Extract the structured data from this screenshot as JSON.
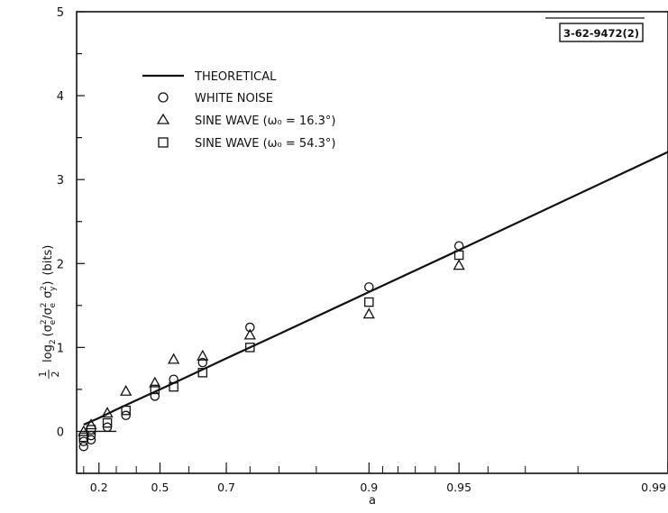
{
  "chart_data": {
    "type": "scatter",
    "figure_id": "3-62-9472(2)",
    "xlabel": "a",
    "ylabel": "1/2 log₂(σₑ²/σₑ² σᵧ²) (bits)",
    "ylabel_parts": {
      "frac_num": "1",
      "frac_den": "2",
      "log": "log",
      "log_sub": "2",
      "paren_open": "(",
      "sigma": "σ",
      "sub_e": "e",
      "sub_y": "y",
      "sup_2": "2",
      "slash": "/",
      "paren_close": ")",
      "units": "(bits)"
    },
    "x_scale": "log(1/(1-a))",
    "xlim": [
      0.05,
      0.99
    ],
    "ylim": [
      -0.5,
      5
    ],
    "x_ticks": [
      0.2,
      0.5,
      0.7,
      0.9,
      0.95,
      0.99
    ],
    "x_tick_labels": [
      "0.2",
      "0.5",
      "0.7",
      "0.9",
      "0.95",
      "0.99"
    ],
    "x_minor_ticks": [
      0.1,
      0.3,
      0.4,
      0.6,
      0.75,
      0.8,
      0.85,
      0.91,
      0.92,
      0.93,
      0.94,
      0.96,
      0.97,
      0.98
    ],
    "y_ticks": [
      0,
      1,
      2,
      3,
      4,
      5
    ],
    "y_tick_labels": [
      "0",
      "1",
      "2",
      "3",
      "4",
      "5"
    ],
    "legend": {
      "position": "top-left",
      "items": [
        {
          "marker": "line",
          "label": "THEORETICAL"
        },
        {
          "marker": "circle",
          "label": "WHITE NOISE"
        },
        {
          "marker": "triangle",
          "label": "SINE WAVE (ω₀ = 16.3°)"
        },
        {
          "marker": "square",
          "label": "SINE WAVE (ω₀ = 54.3°)"
        }
      ]
    },
    "series": [
      {
        "name": "THEORETICAL",
        "marker": "line",
        "x": [
          0.1,
          0.2,
          0.3,
          0.4,
          0.5,
          0.6,
          0.7,
          0.8,
          0.9,
          0.95,
          0.99
        ],
        "y": [
          0.08,
          0.16,
          0.26,
          0.37,
          0.5,
          0.66,
          0.87,
          1.16,
          1.66,
          2.16,
          3.33
        ]
      },
      {
        "name": "WHITE NOISE",
        "marker": "circle",
        "x": [
          0.1,
          0.1,
          0.15,
          0.15,
          0.25,
          0.35,
          0.48,
          0.55,
          0.64,
          0.75,
          0.9,
          0.95
        ],
        "y": [
          -0.12,
          -0.18,
          -0.05,
          -0.1,
          0.05,
          0.19,
          0.42,
          0.62,
          0.82,
          1.24,
          1.72,
          2.21
        ]
      },
      {
        "name": "SINE WAVE (ω₀ = 16.3°)",
        "marker": "triangle",
        "x": [
          0.1,
          0.15,
          0.25,
          0.35,
          0.48,
          0.55,
          0.64,
          0.75,
          0.9,
          0.95
        ],
        "y": [
          0.0,
          0.08,
          0.22,
          0.48,
          0.58,
          0.86,
          0.9,
          1.15,
          1.4,
          1.98
        ]
      },
      {
        "name": "SINE WAVE (ω₀ = 54.3°)",
        "marker": "square",
        "x": [
          0.1,
          0.15,
          0.25,
          0.35,
          0.48,
          0.55,
          0.64,
          0.75,
          0.9,
          0.95
        ],
        "y": [
          -0.07,
          0.02,
          0.1,
          0.25,
          0.5,
          0.53,
          0.7,
          1.0,
          1.54,
          2.1
        ]
      }
    ],
    "reference_line": {
      "y": 0,
      "x_range": [
        0.1,
        0.3
      ]
    }
  },
  "colors": {
    "ink": "#111111",
    "background": "#ffffff"
  }
}
